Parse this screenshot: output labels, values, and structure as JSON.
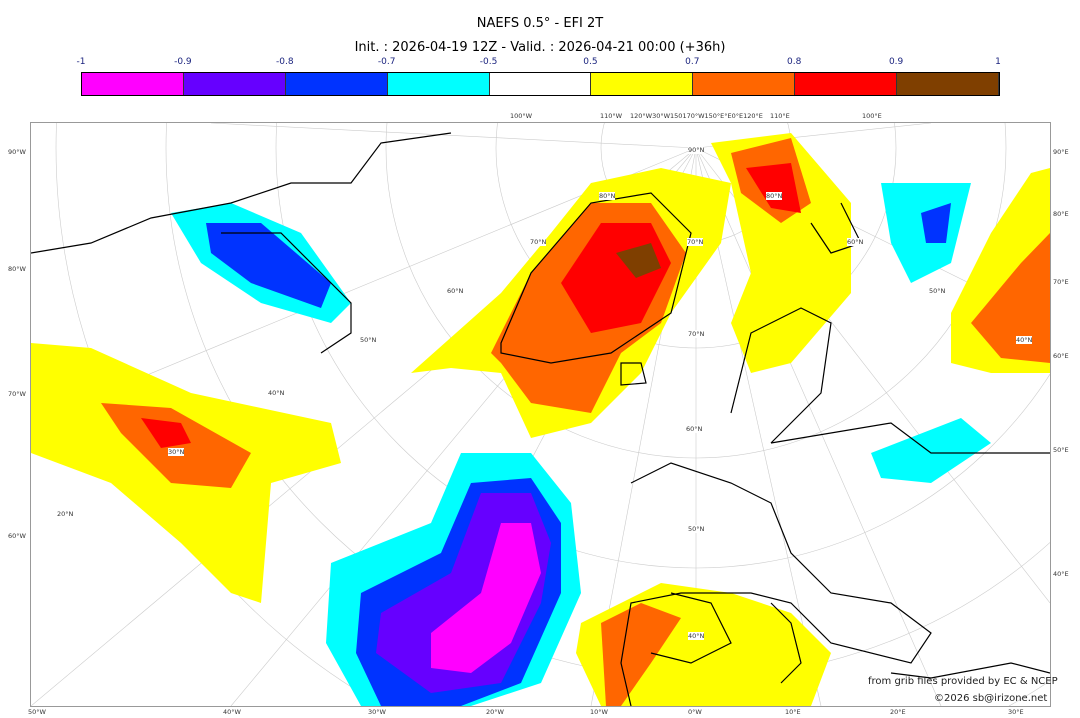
{
  "title": "NAEFS 0.5° - EFI 2T",
  "subtitle": "Init. : 2026-04-19 12Z - Valid. : 2026-04-21 00:00 (+36h)",
  "colorbar": {
    "ticks": [
      "-1",
      "-0.9",
      "-0.8",
      "-0.7",
      "-0.5",
      "0.5",
      "0.7",
      "0.8",
      "0.9",
      "1"
    ],
    "colors": [
      "#ff00ff",
      "#6600ff",
      "#0033ff",
      "#00ffff",
      "#ffffff",
      "#ffff00",
      "#ff6600",
      "#ff0000",
      "#7f3f00"
    ]
  },
  "axes": {
    "left": [
      "90°W",
      "80°W",
      "70°W",
      "60°W"
    ],
    "right": [
      "90°E",
      "80°E",
      "70°E",
      "60°E",
      "50°E",
      "40°E"
    ],
    "bottom": [
      "50°W",
      "40°W",
      "30°W",
      "20°W",
      "10°W",
      "0°W",
      "10°E",
      "20°E",
      "30°E"
    ],
    "top": [
      "100°W",
      "110°W",
      "120°W30°W150170°W150°E°E0°E120°E",
      "110°E",
      "100°E"
    ],
    "inner": [
      "90°N",
      "80°N",
      "70°N",
      "60°N",
      "50°N",
      "40°N",
      "30°N",
      "20°N",
      "80°N",
      "70°N",
      "60°N",
      "50°N",
      "40°N",
      "70°N",
      "60°N",
      "50°N",
      "40°N"
    ]
  },
  "credits": {
    "source": "from grib files provided by EC & NCEP",
    "copyright": "©2026 sb@irizone.net"
  }
}
